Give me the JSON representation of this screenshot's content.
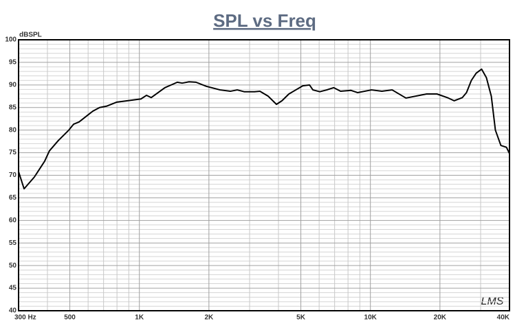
{
  "chart_data": {
    "type": "line",
    "title": "SPL vs Freq",
    "ylabel": "dBSPL",
    "annotation": "LMS",
    "log_x": true,
    "grid": true,
    "color": "#000000",
    "xlim": [
      300,
      40000
    ],
    "ylim": [
      40,
      100
    ],
    "xticks": [
      {
        "value": 300,
        "label": "300 Hz"
      },
      500,
      {
        "value": 1000,
        "label": "1K"
      },
      {
        "value": 2000,
        "label": "2K"
      },
      {
        "value": 5000,
        "label": "5K"
      },
      {
        "value": 10000,
        "label": "10K"
      },
      {
        "value": 20000,
        "label": "20K"
      },
      {
        "value": 40000,
        "label": "40K"
      }
    ],
    "xminor_ticks": [
      400,
      600,
      700,
      800,
      900,
      3000,
      4000,
      6000,
      7000,
      8000,
      9000,
      30000
    ],
    "yticks": [
      40,
      45,
      50,
      55,
      60,
      65,
      70,
      75,
      80,
      85,
      90,
      95,
      100
    ],
    "yminor_ticks": [
      41,
      42,
      43,
      44,
      46,
      47,
      48,
      49,
      51,
      52,
      53,
      54,
      56,
      57,
      58,
      59,
      61,
      62,
      63,
      64,
      66,
      67,
      68,
      69,
      71,
      72,
      73,
      74,
      76,
      77,
      78,
      79,
      81,
      82,
      83,
      84,
      86,
      87,
      88,
      89,
      91,
      92,
      93,
      94,
      96,
      97,
      98,
      99
    ],
    "x": [
      300,
      317,
      351,
      389,
      408,
      446,
      495,
      519,
      548,
      587,
      629,
      673,
      721,
      799,
      917,
      1016,
      1074,
      1125,
      1290,
      1460,
      1532,
      1641,
      1758,
      1949,
      2235,
      2477,
      2653,
      2842,
      3148,
      3327,
      3612,
      3921,
      4142,
      4438,
      4755,
      5095,
      5449,
      5638,
      6040,
      6473,
      6935,
      7430,
      8225,
      8812,
      10110,
      11210,
      12420,
      14250,
      17510,
      19410,
      21520,
      23030,
      25000,
      26060,
      27350,
      28700,
      30290,
      31780,
      33370,
      34750,
      36710,
      38800,
      40000
    ],
    "values": [
      70.8,
      67.0,
      69.6,
      73.1,
      75.4,
      77.7,
      80.0,
      81.3,
      81.8,
      83.0,
      84.2,
      85.0,
      85.3,
      86.2,
      86.6,
      86.9,
      87.7,
      87.2,
      89.4,
      90.6,
      90.4,
      90.7,
      90.6,
      89.7,
      88.9,
      88.6,
      88.9,
      88.5,
      88.5,
      88.6,
      87.5,
      85.7,
      86.5,
      88.0,
      88.9,
      89.8,
      90.0,
      88.9,
      88.5,
      88.9,
      89.4,
      88.6,
      88.8,
      88.3,
      88.9,
      88.6,
      88.9,
      87.1,
      88.0,
      88.0,
      87.2,
      86.5,
      87.2,
      88.3,
      91.0,
      92.6,
      93.5,
      91.6,
      87.5,
      80.0,
      76.6,
      76.2,
      74.8
    ]
  }
}
